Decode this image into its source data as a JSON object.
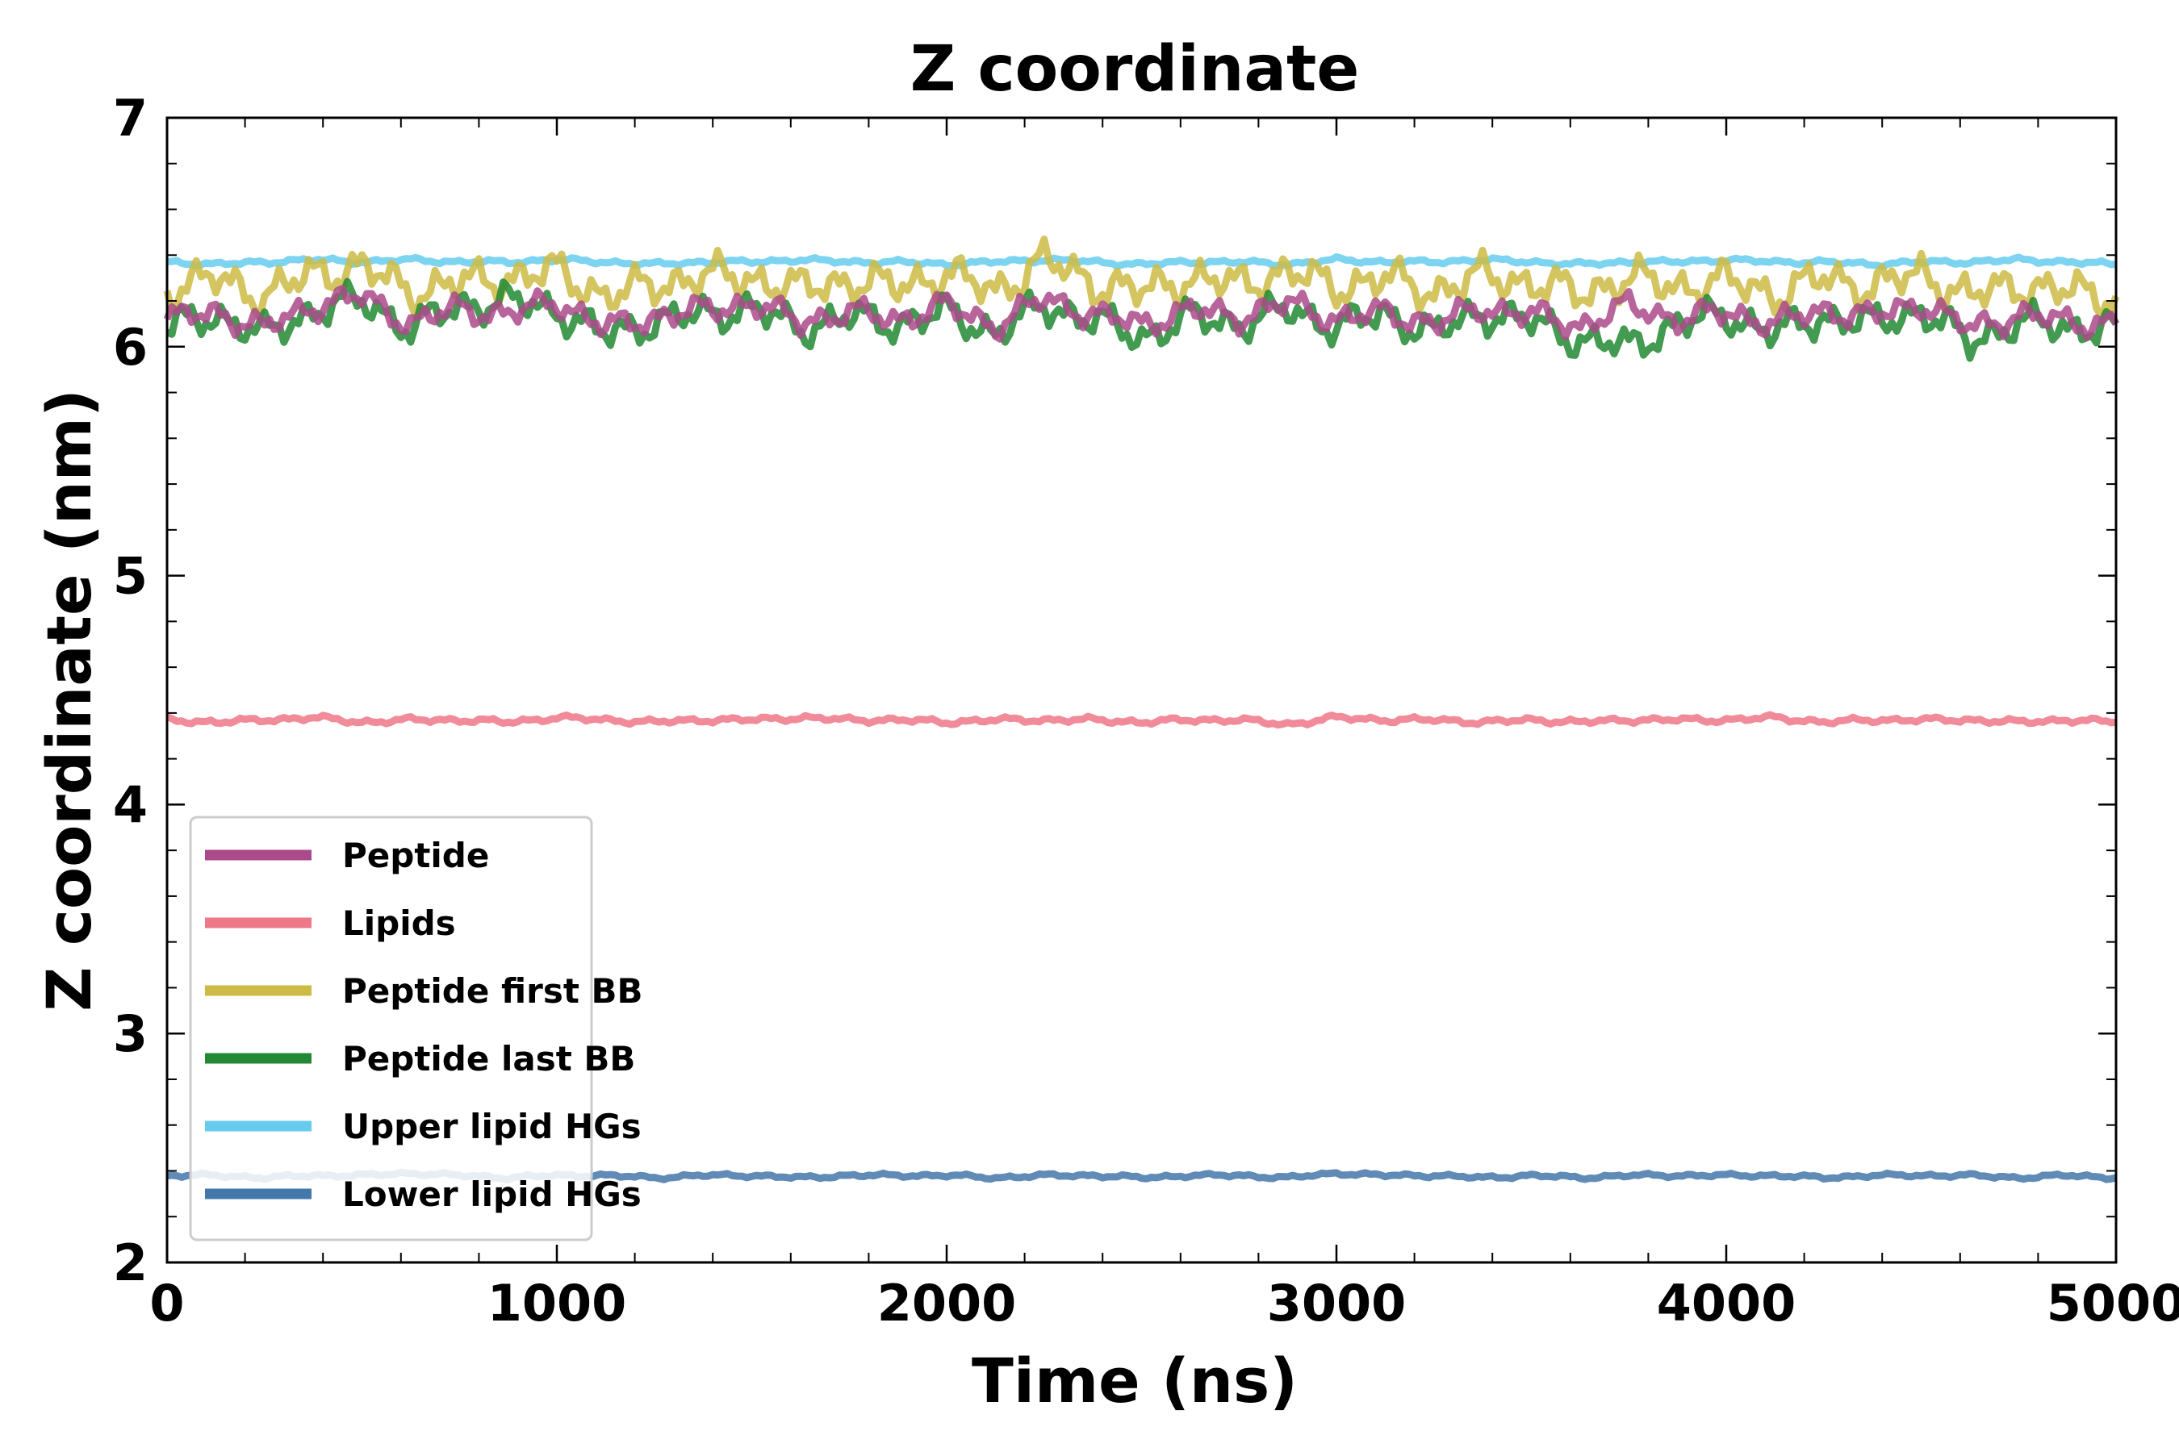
{
  "chart_data": {
    "type": "line",
    "title": "Z coordinate",
    "xlabel": "Time (ns)",
    "ylabel": "Z coordinate (nm)",
    "xlim": [
      0,
      5000
    ],
    "ylim": [
      2,
      7
    ],
    "xticks": [
      0,
      1000,
      2000,
      3000,
      4000,
      5000
    ],
    "yticks": [
      2,
      3,
      4,
      5,
      6,
      7
    ],
    "grid": false,
    "legend_position": "lower-left",
    "x": [
      0,
      125,
      250,
      375,
      500,
      625,
      750,
      875,
      1000,
      1125,
      1250,
      1375,
      1500,
      1625,
      1750,
      1875,
      2000,
      2125,
      2250,
      2375,
      2500,
      2625,
      2750,
      2875,
      3000,
      3125,
      3250,
      3375,
      3500,
      3625,
      3750,
      3875,
      4000,
      4125,
      4250,
      4375,
      4500,
      4625,
      4750,
      4875,
      5000
    ],
    "series": [
      {
        "name": "Peptide",
        "color": "#aa4a8a",
        "values": [
          6.12,
          6.15,
          6.08,
          6.18,
          6.22,
          6.1,
          6.17,
          6.14,
          6.2,
          6.08,
          6.13,
          6.16,
          6.19,
          6.11,
          6.15,
          6.12,
          6.18,
          6.09,
          6.21,
          6.14,
          6.1,
          6.16,
          6.13,
          6.19,
          6.12,
          6.15,
          6.1,
          6.17,
          6.14,
          6.09,
          6.18,
          6.12,
          6.15,
          6.1,
          6.16,
          6.13,
          6.19,
          6.08,
          6.14,
          6.11,
          6.1
        ]
      },
      {
        "name": "Lipids",
        "color": "#ee7788",
        "values": [
          4.37,
          4.36,
          4.37,
          4.38,
          4.36,
          4.37,
          4.37,
          4.36,
          4.38,
          4.37,
          4.36,
          4.37,
          4.37,
          4.38,
          4.37,
          4.37,
          4.36,
          4.37,
          4.37,
          4.37,
          4.36,
          4.37,
          4.37,
          4.35,
          4.38,
          4.37,
          4.37,
          4.36,
          4.37,
          4.36,
          4.37,
          4.37,
          4.37,
          4.38,
          4.36,
          4.37,
          4.37,
          4.37,
          4.36,
          4.37,
          4.36
        ]
      },
      {
        "name": "Peptide first BB",
        "color": "#ccbb44",
        "values": [
          6.25,
          6.3,
          6.22,
          6.32,
          6.35,
          6.24,
          6.28,
          6.3,
          6.33,
          6.22,
          6.27,
          6.31,
          6.3,
          6.25,
          6.29,
          6.26,
          6.32,
          6.24,
          6.38,
          6.28,
          6.24,
          6.3,
          6.27,
          6.33,
          6.26,
          6.3,
          6.24,
          6.31,
          6.28,
          6.23,
          6.3,
          6.26,
          6.29,
          6.23,
          6.3,
          6.26,
          6.32,
          6.22,
          6.27,
          6.24,
          6.22
        ]
      },
      {
        "name": "Peptide last BB",
        "color": "#228833",
        "values": [
          6.08,
          6.14,
          6.05,
          6.16,
          6.2,
          6.08,
          6.18,
          6.2,
          6.16,
          6.05,
          6.11,
          6.14,
          6.17,
          6.08,
          6.13,
          6.1,
          6.15,
          6.06,
          6.18,
          6.12,
          6.04,
          6.13,
          6.1,
          6.16,
          6.09,
          6.14,
          6.06,
          6.15,
          6.11,
          6.03,
          6.0,
          6.1,
          6.14,
          6.06,
          6.13,
          6.1,
          6.16,
          6.02,
          6.11,
          6.08,
          6.1
        ]
      },
      {
        "name": "Upper lipid HGs",
        "color": "#66ccee",
        "values": [
          6.37,
          6.36,
          6.37,
          6.38,
          6.37,
          6.38,
          6.37,
          6.37,
          6.38,
          6.37,
          6.36,
          6.37,
          6.37,
          6.38,
          6.37,
          6.37,
          6.36,
          6.37,
          6.38,
          6.37,
          6.36,
          6.37,
          6.37,
          6.36,
          6.38,
          6.37,
          6.37,
          6.38,
          6.37,
          6.36,
          6.37,
          6.37,
          6.38,
          6.37,
          6.37,
          6.36,
          6.37,
          6.37,
          6.38,
          6.37,
          6.36
        ]
      },
      {
        "name": "Lower lipid HGs",
        "color": "#4477aa",
        "values": [
          2.38,
          2.38,
          2.37,
          2.38,
          2.38,
          2.39,
          2.38,
          2.37,
          2.38,
          2.38,
          2.37,
          2.38,
          2.38,
          2.37,
          2.38,
          2.38,
          2.38,
          2.37,
          2.38,
          2.38,
          2.37,
          2.38,
          2.38,
          2.37,
          2.39,
          2.38,
          2.38,
          2.37,
          2.38,
          2.37,
          2.38,
          2.38,
          2.38,
          2.38,
          2.37,
          2.38,
          2.38,
          2.38,
          2.37,
          2.38,
          2.37
        ]
      }
    ]
  }
}
